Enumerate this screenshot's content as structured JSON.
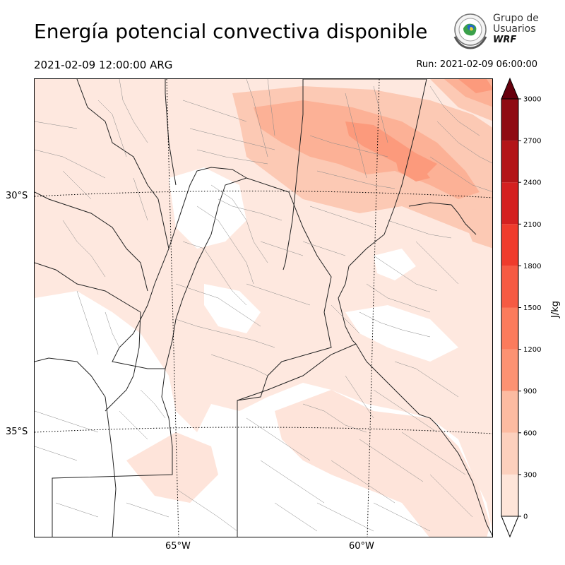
{
  "title": "Energía potencial convectiva disponible",
  "valid_time": "2021-02-09 12:00:00 ARG",
  "run_time": "Run: 2021-02-09 06:00:00",
  "logo": {
    "line1": "Grupo de",
    "line2": "Usuarios",
    "line3": "WRF"
  },
  "map": {
    "lat_labels": [
      "30°S",
      "35°S"
    ],
    "lon_labels": [
      "65°W",
      "60°W"
    ]
  },
  "colorbar": {
    "unit": "J/kg",
    "ticks": [
      "0",
      "300",
      "600",
      "900",
      "1200",
      "1500",
      "1800",
      "2100",
      "2400",
      "2700",
      "3000"
    ],
    "colors": [
      "#fee5d9",
      "#fcd0bd",
      "#fcbba1",
      "#fc9272",
      "#fb7b5c",
      "#f65a43",
      "#ef3b2c",
      "#d42020",
      "#b31518",
      "#8f0b13",
      "#67000d"
    ],
    "extend_colors": {
      "under": "#ffffff",
      "over": "#67000d"
    }
  }
}
